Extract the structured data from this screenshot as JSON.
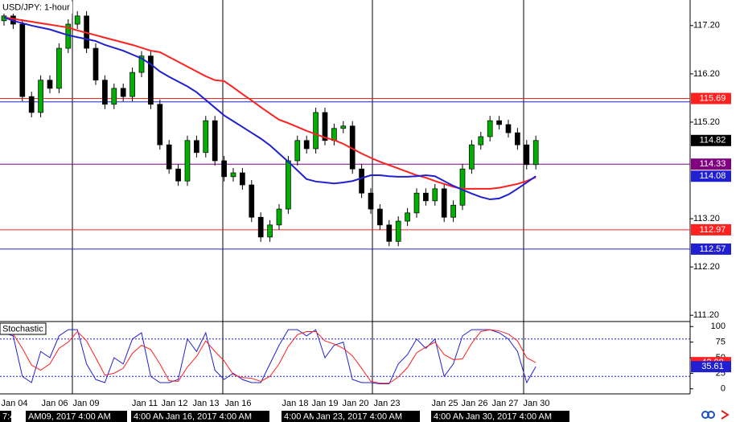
{
  "chart_data": [
    {
      "type": "candlestick",
      "title": "USD/JPY: 1-hour",
      "open": [
        117.3,
        117.4,
        117.23,
        115.73,
        115.4,
        116.07,
        115.9,
        116.73,
        117.23,
        117.4,
        116.73,
        116.07,
        115.57,
        115.9,
        115.73,
        116.23,
        116.57,
        115.57,
        114.73,
        114.23,
        113.98,
        114.82,
        114.57,
        115.23,
        114.4,
        114.07,
        114.15,
        113.9,
        113.23,
        112.82,
        113.07,
        113.4,
        114.4,
        114.82,
        114.65,
        115.4,
        114.82,
        115.07,
        115.12,
        114.23,
        113.73,
        113.4,
        113.07,
        112.73,
        113.15,
        113.32,
        113.73,
        113.57,
        113.82,
        113.23,
        113.48,
        114.23,
        114.73,
        114.9,
        115.23,
        115.15,
        114.98,
        114.73,
        114.32
      ],
      "high": [
        117.5,
        117.5,
        117.33,
        115.83,
        116.17,
        116.17,
        116.83,
        117.33,
        117.5,
        117.5,
        116.83,
        116.17,
        116.0,
        116.0,
        116.33,
        116.67,
        116.67,
        115.67,
        114.83,
        114.33,
        114.92,
        114.92,
        115.33,
        115.33,
        114.5,
        114.25,
        114.25,
        114.0,
        113.33,
        113.17,
        113.5,
        114.5,
        114.92,
        114.92,
        115.5,
        115.5,
        115.17,
        115.22,
        115.22,
        114.33,
        113.83,
        113.5,
        113.17,
        113.25,
        113.42,
        113.83,
        113.83,
        113.92,
        113.92,
        113.58,
        114.33,
        114.83,
        115.0,
        115.33,
        115.33,
        115.25,
        115.08,
        114.83,
        114.92
      ],
      "low": [
        117.2,
        117.13,
        115.63,
        115.3,
        115.3,
        115.8,
        115.8,
        116.63,
        117.13,
        116.63,
        115.97,
        115.47,
        115.47,
        115.63,
        115.63,
        116.13,
        115.47,
        114.63,
        114.13,
        113.88,
        113.88,
        114.47,
        114.47,
        114.3,
        113.97,
        113.97,
        113.8,
        113.13,
        112.72,
        112.72,
        112.97,
        113.3,
        114.3,
        114.55,
        114.55,
        114.72,
        114.72,
        114.97,
        114.13,
        113.63,
        113.3,
        112.97,
        112.63,
        112.63,
        113.05,
        113.22,
        113.47,
        113.47,
        113.13,
        113.13,
        113.38,
        114.13,
        114.63,
        114.8,
        115.05,
        114.88,
        114.63,
        114.22,
        114.22
      ],
      "close": [
        117.4,
        117.23,
        115.73,
        115.4,
        116.07,
        115.9,
        116.73,
        117.23,
        117.4,
        116.73,
        116.07,
        115.57,
        115.9,
        115.73,
        116.23,
        116.57,
        115.57,
        114.73,
        114.23,
        113.98,
        114.82,
        114.57,
        115.23,
        114.4,
        114.07,
        114.15,
        113.9,
        113.23,
        112.82,
        113.07,
        113.4,
        114.4,
        114.82,
        114.65,
        115.4,
        114.82,
        115.07,
        115.12,
        114.23,
        113.73,
        113.4,
        113.07,
        112.73,
        113.15,
        113.32,
        113.73,
        113.57,
        113.82,
        113.23,
        113.48,
        114.23,
        114.73,
        114.9,
        115.23,
        115.15,
        114.98,
        114.73,
        114.32,
        114.82
      ],
      "series": [
        {
          "color": "#ff2020",
          "values": [
            117.37,
            117.34,
            117.31,
            117.28,
            117.25,
            117.22,
            117.19,
            117.16,
            117.1,
            117.05,
            117.0,
            116.95,
            116.9,
            116.85,
            116.8,
            116.74,
            116.68,
            116.65,
            116.55,
            116.45,
            116.35,
            116.25,
            116.15,
            116.07,
            116.05,
            115.92,
            115.78,
            115.65,
            115.51,
            115.38,
            115.25,
            115.18,
            115.1,
            115.02,
            114.95,
            114.88,
            114.83,
            114.75,
            114.65,
            114.55,
            114.46,
            114.38,
            114.31,
            114.24,
            114.17,
            114.1,
            114.05,
            113.98,
            113.92,
            113.86,
            113.82,
            113.82,
            113.82,
            113.82,
            113.84,
            113.88,
            113.92,
            113.98,
            114.06
          ]
        },
        {
          "color": "#2020d0",
          "values": [
            117.37,
            117.3,
            117.25,
            117.2,
            117.16,
            117.12,
            117.06,
            117.0,
            116.96,
            116.92,
            116.88,
            116.8,
            116.74,
            116.68,
            116.6,
            116.52,
            116.4,
            116.25,
            116.14,
            116.04,
            115.94,
            115.82,
            115.66,
            115.5,
            115.34,
            115.22,
            115.1,
            114.98,
            114.86,
            114.72,
            114.55,
            114.38,
            114.2,
            114.02,
            113.97,
            113.95,
            113.93,
            113.95,
            113.98,
            114.04,
            114.1,
            114.1,
            114.08,
            114.07,
            114.07,
            114.08,
            114.1,
            114.08,
            113.98,
            113.88,
            113.8,
            113.72,
            113.65,
            113.6,
            113.62,
            113.7,
            113.82,
            113.95,
            114.08
          ]
        }
      ],
      "levels": [
        {
          "value": 115.69,
          "color": "#ff2020"
        },
        {
          "value": 114.33,
          "color": "#800080"
        },
        {
          "value": 112.97,
          "color": "#ff2020"
        },
        {
          "value": 112.57,
          "color": "#2020d0"
        }
      ],
      "unlabeled_levels": [
        {
          "value": 115.62,
          "color": "#2020d0"
        }
      ],
      "last_price": 114.82,
      "ylim": [
        111.07,
        117.73
      ],
      "yticks": [
        {
          "value": 117.2,
          "label": "117.20"
        },
        {
          "value": 116.2,
          "label": "116.20"
        },
        {
          "value": 115.2,
          "label": "115.20"
        },
        {
          "value": 113.2,
          "label": "113.20"
        },
        {
          "value": 112.2,
          "label": "112.20"
        },
        {
          "value": 111.2,
          "label": "111.20"
        }
      ]
    },
    {
      "type": "line",
      "title": "Stochastic",
      "series": [
        {
          "color": "#2020d0",
          "values": [
            90,
            85,
            20,
            10,
            60,
            50,
            85,
            95,
            95,
            40,
            15,
            10,
            50,
            40,
            80,
            90,
            20,
            10,
            10,
            15,
            80,
            60,
            90,
            30,
            15,
            25,
            15,
            10,
            10,
            40,
            70,
            95,
            95,
            85,
            95,
            50,
            70,
            75,
            15,
            10,
            10,
            8,
            8,
            40,
            55,
            80,
            65,
            80,
            20,
            40,
            85,
            95,
            95,
            95,
            90,
            80,
            60,
            10,
            35.61
          ]
        },
        {
          "color": "#ff2020",
          "values": [
            88,
            88,
            65,
            38,
            30,
            40,
            65,
            75,
            92,
            77,
            50,
            22,
            25,
            33,
            57,
            70,
            63,
            40,
            13,
            12,
            35,
            52,
            77,
            60,
            45,
            23,
            18,
            17,
            12,
            20,
            40,
            68,
            87,
            92,
            92,
            77,
            72,
            65,
            53,
            33,
            12,
            9,
            9,
            19,
            34,
            58,
            67,
            75,
            55,
            47,
            48,
            73,
            92,
            95,
            93,
            88,
            77,
            50,
            42.08
          ]
        }
      ],
      "levels": [
        80,
        20
      ],
      "ylim": [
        -6.8,
        106.8
      ],
      "yticks": [
        100,
        75,
        50,
        25,
        0
      ],
      "xlabels": [
        "Jan 04",
        "Jan 06",
        "Jan 09",
        "Jan 11",
        "Jan 12",
        "Jan 13",
        "Jan 16",
        "Jan 18",
        "Jan 19",
        "Jan 20",
        "Jan 23",
        "Jan 25",
        "Jan 26",
        "Jan 27",
        "Jan 30"
      ],
      "time_labels": [
        "7:4",
        "AM09, 2017 4:00 AM",
        "4:00 AM",
        "Jan 16, 2017 4:00 AM",
        "4:00 AM",
        "Jan 23, 2017 4:00 AM",
        "4:00 AM",
        "Jan 30, 2017 4:00 AM"
      ]
    }
  ]
}
